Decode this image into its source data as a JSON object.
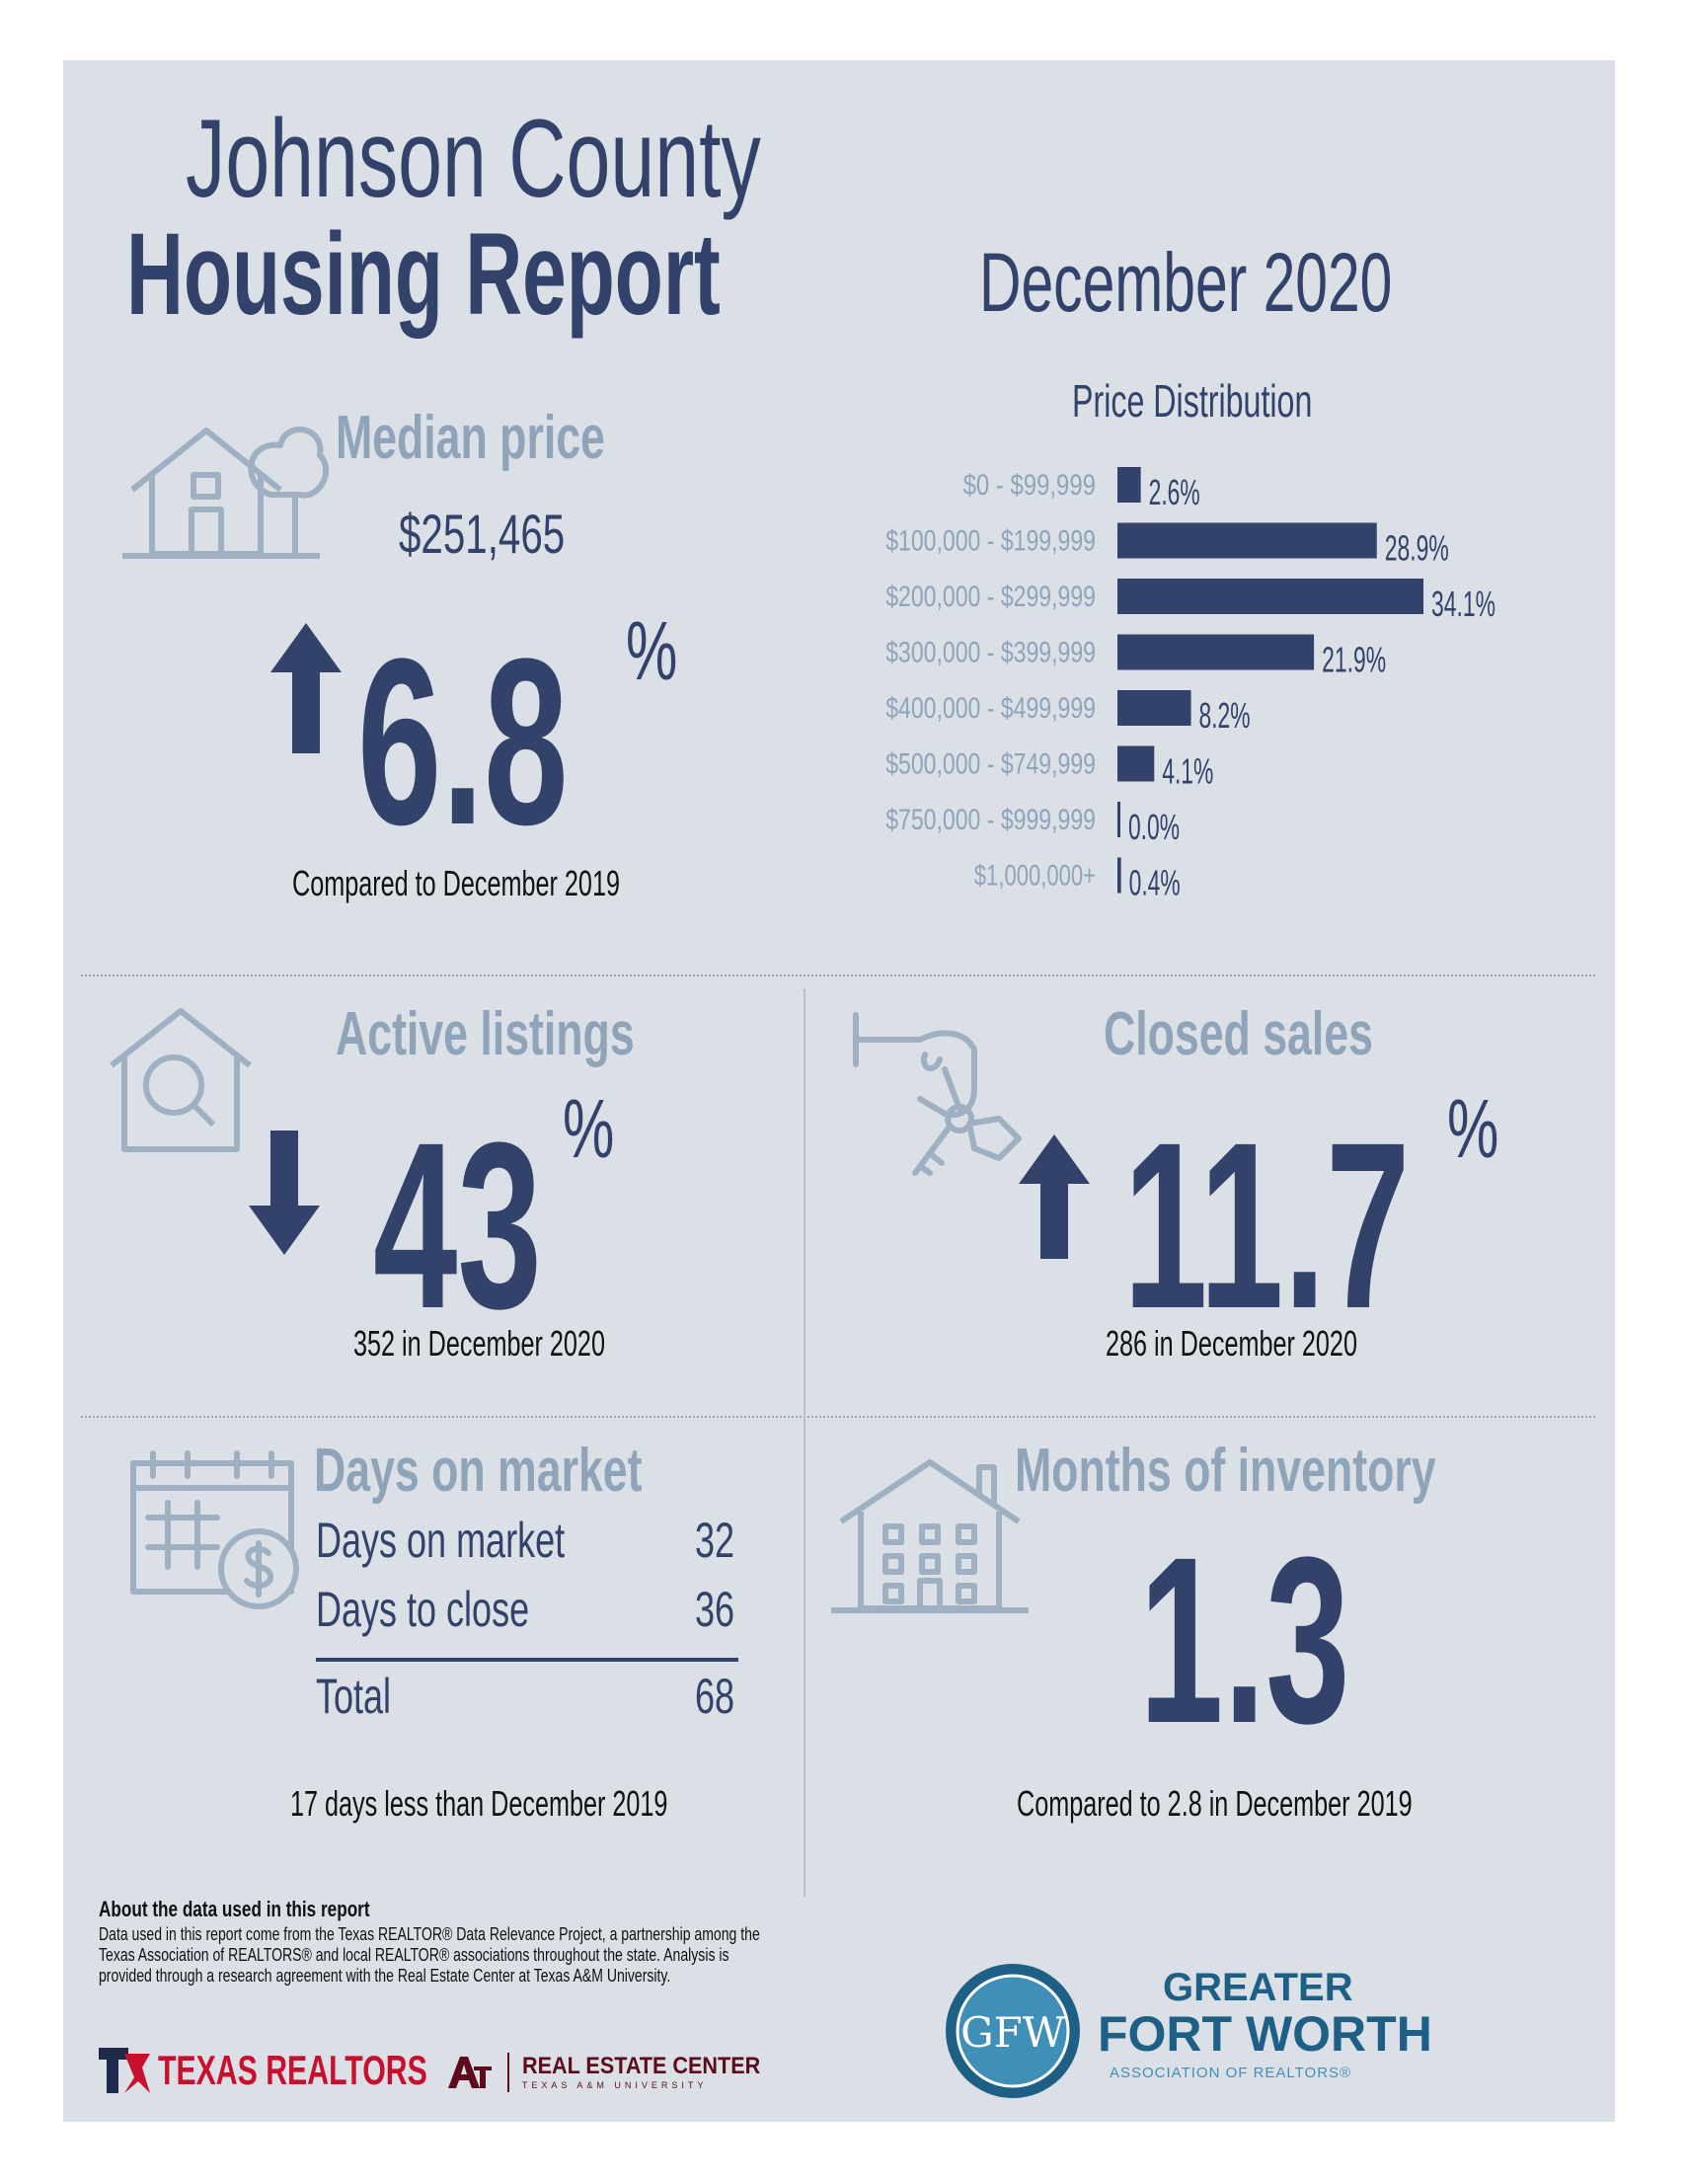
{
  "header": {
    "title_line1": "Johnson County",
    "title_line2": "Housing Report",
    "period": "December 2020"
  },
  "median_price": {
    "title": "Median price",
    "value": "$251,465",
    "change": "6.8",
    "unit": "%",
    "direction": "up",
    "comparison": "Compared to December 2019"
  },
  "chart_data": {
    "type": "bar",
    "orientation": "horizontal",
    "title": "Price Distribution",
    "categories": [
      "$0 - $99,999",
      "$100,000 - $199,999",
      "$200,000 - $299,999",
      "$300,000 - $399,999",
      "$400,000 - $499,999",
      "$500,000 - $749,999",
      "$750,000 - $999,999",
      "$1,000,000+"
    ],
    "values": [
      2.6,
      28.9,
      34.1,
      21.9,
      8.2,
      4.1,
      0.0,
      0.4
    ],
    "value_labels": [
      "2.6%",
      "28.9%",
      "34.1%",
      "21.9%",
      "8.2%",
      "4.1%",
      "0.0%",
      "0.4%"
    ],
    "bar_color": "#33426a"
  },
  "active_listings": {
    "title": "Active listings",
    "change": "43",
    "unit": "%",
    "direction": "down",
    "detail": "352 in December 2020"
  },
  "closed_sales": {
    "title": "Closed sales",
    "change": "11.7",
    "unit": "%",
    "direction": "up",
    "detail": "286 in December 2020"
  },
  "days_on_market": {
    "title": "Days on market",
    "rows": [
      {
        "label": "Days on market",
        "value": "32"
      },
      {
        "label": "Days to close",
        "value": "36"
      }
    ],
    "total_label": "Total",
    "total_value": "68",
    "comparison": "17 days less than December 2019"
  },
  "months_inventory": {
    "title": "Months of inventory",
    "value": "1.3",
    "comparison": "Compared to 2.8 in December 2019"
  },
  "footer": {
    "about_title": "About the data used in this report",
    "about_text": "Data used in this report come from the Texas REALTOR® Data Relevance Project, a partnership among the Texas Association of REALTORS® and local REALTOR® associations throughout the state. Analysis is provided through a research agreement with the Real Estate Center at Texas A&M University.",
    "logo_texas_realtors": "TEXAS REALTORS",
    "logo_rec": "REAL ESTATE CENTER",
    "logo_rec_sub": "TEXAS A&M UNIVERSITY",
    "logo_gfw_line1": "GREATER",
    "logo_gfw_line2": "FORT WORTH",
    "logo_gfw_line3": "ASSOCIATION OF REALTORS®",
    "logo_gfw_mark": "GFW"
  },
  "colors": {
    "navy": "#33426a",
    "light_blue": "#8fa3b9",
    "background": "#dbe0e7"
  }
}
